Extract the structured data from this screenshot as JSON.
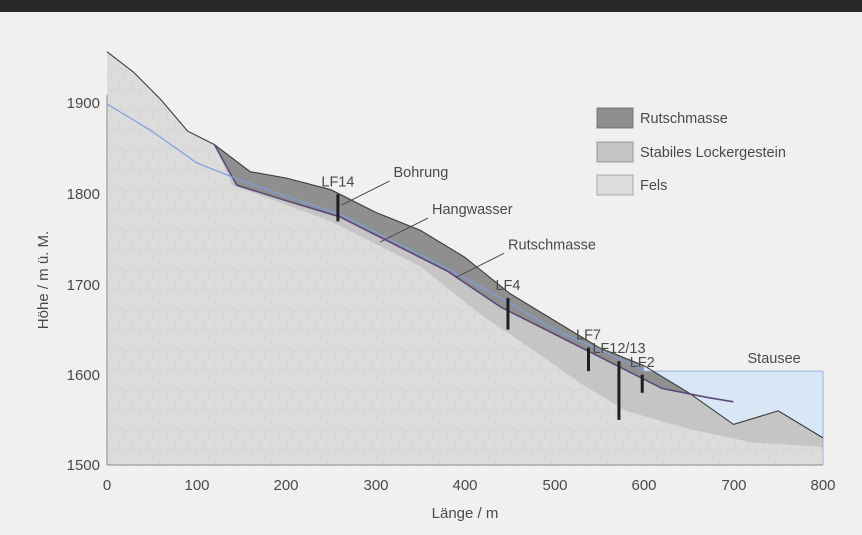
{
  "chart_data": {
    "type": "area",
    "xlabel": "Länge / m",
    "ylabel": "Höhe / m ü. M.",
    "xlim": [
      0,
      800
    ],
    "ylim": [
      1500,
      1900
    ],
    "x_ticks": [
      "0",
      "100",
      "200",
      "300",
      "400",
      "500",
      "600",
      "700",
      "800"
    ],
    "y_ticks": [
      "1500",
      "1600",
      "1700",
      "1800",
      "1900"
    ],
    "colors": {
      "rutschmasse": "#8f8f8f",
      "stabiles_lockergestein": "#c5c5c5",
      "fels": "#dcdcdc",
      "stausee": "#d8e6f6",
      "hangwasser": "#7f9de0",
      "gleitflaeche": "#5c4a78"
    },
    "legend": [
      {
        "key": "rutschmasse",
        "label": "Rutschmasse"
      },
      {
        "key": "stabiles_lockergestein",
        "label": "Stabiles Lockergestein"
      },
      {
        "key": "fels",
        "label": "Fels"
      }
    ],
    "terrain_surface": [
      [
        0,
        1958
      ],
      [
        30,
        1935
      ],
      [
        60,
        1905
      ],
      [
        90,
        1870
      ],
      [
        120,
        1855
      ],
      [
        160,
        1825
      ],
      [
        200,
        1818
      ],
      [
        250,
        1805
      ],
      [
        300,
        1780
      ],
      [
        350,
        1760
      ],
      [
        400,
        1730
      ],
      [
        450,
        1690
      ],
      [
        500,
        1660
      ],
      [
        550,
        1630
      ],
      [
        600,
        1610
      ],
      [
        650,
        1580
      ],
      [
        700,
        1545
      ],
      [
        750,
        1560
      ],
      [
        800,
        1530
      ]
    ],
    "slip_surface": [
      [
        120,
        1855
      ],
      [
        145,
        1810
      ],
      [
        200,
        1793
      ],
      [
        260,
        1775
      ],
      [
        320,
        1745
      ],
      [
        380,
        1715
      ],
      [
        440,
        1675
      ],
      [
        500,
        1645
      ],
      [
        560,
        1615
      ],
      [
        620,
        1585
      ],
      [
        670,
        1575
      ],
      [
        700,
        1570
      ]
    ],
    "lockergestein_base": [
      [
        140,
        1810
      ],
      [
        250,
        1770
      ],
      [
        350,
        1720
      ],
      [
        420,
        1665
      ],
      [
        480,
        1625
      ],
      [
        530,
        1590
      ],
      [
        580,
        1560
      ],
      [
        650,
        1540
      ],
      [
        720,
        1525
      ],
      [
        800,
        1520
      ]
    ],
    "groundwater": [
      [
        0,
        1900
      ],
      [
        50,
        1870
      ],
      [
        100,
        1835
      ],
      [
        150,
        1815
      ],
      [
        200,
        1798
      ],
      [
        260,
        1778
      ],
      [
        320,
        1748
      ],
      [
        380,
        1718
      ],
      [
        440,
        1685
      ],
      [
        500,
        1650
      ],
      [
        550,
        1628
      ],
      [
        600,
        1605
      ]
    ],
    "reservoir": {
      "label": "Stausee",
      "level": 1604,
      "x_range": [
        600,
        800
      ]
    },
    "boreholes": [
      {
        "label": "LF14",
        "x": 258,
        "top": 1800,
        "bottom": 1770
      },
      {
        "label": "LF4",
        "x": 448,
        "top": 1685,
        "bottom": 1650
      },
      {
        "label": "LF7",
        "x": 538,
        "top": 1630,
        "bottom": 1604
      },
      {
        "label": "LF12/13",
        "x": 572,
        "top": 1615,
        "bottom": 1550
      },
      {
        "label": "LF2",
        "x": 598,
        "top": 1600,
        "bottom": 1580
      }
    ],
    "annotations": [
      {
        "text": "Bohrung",
        "target": [
          262,
          1788
        ]
      },
      {
        "text": "Hangwasser",
        "target": [
          305,
          1747
        ]
      },
      {
        "text": "Rutschmasse",
        "target": [
          390,
          1708
        ]
      }
    ]
  }
}
